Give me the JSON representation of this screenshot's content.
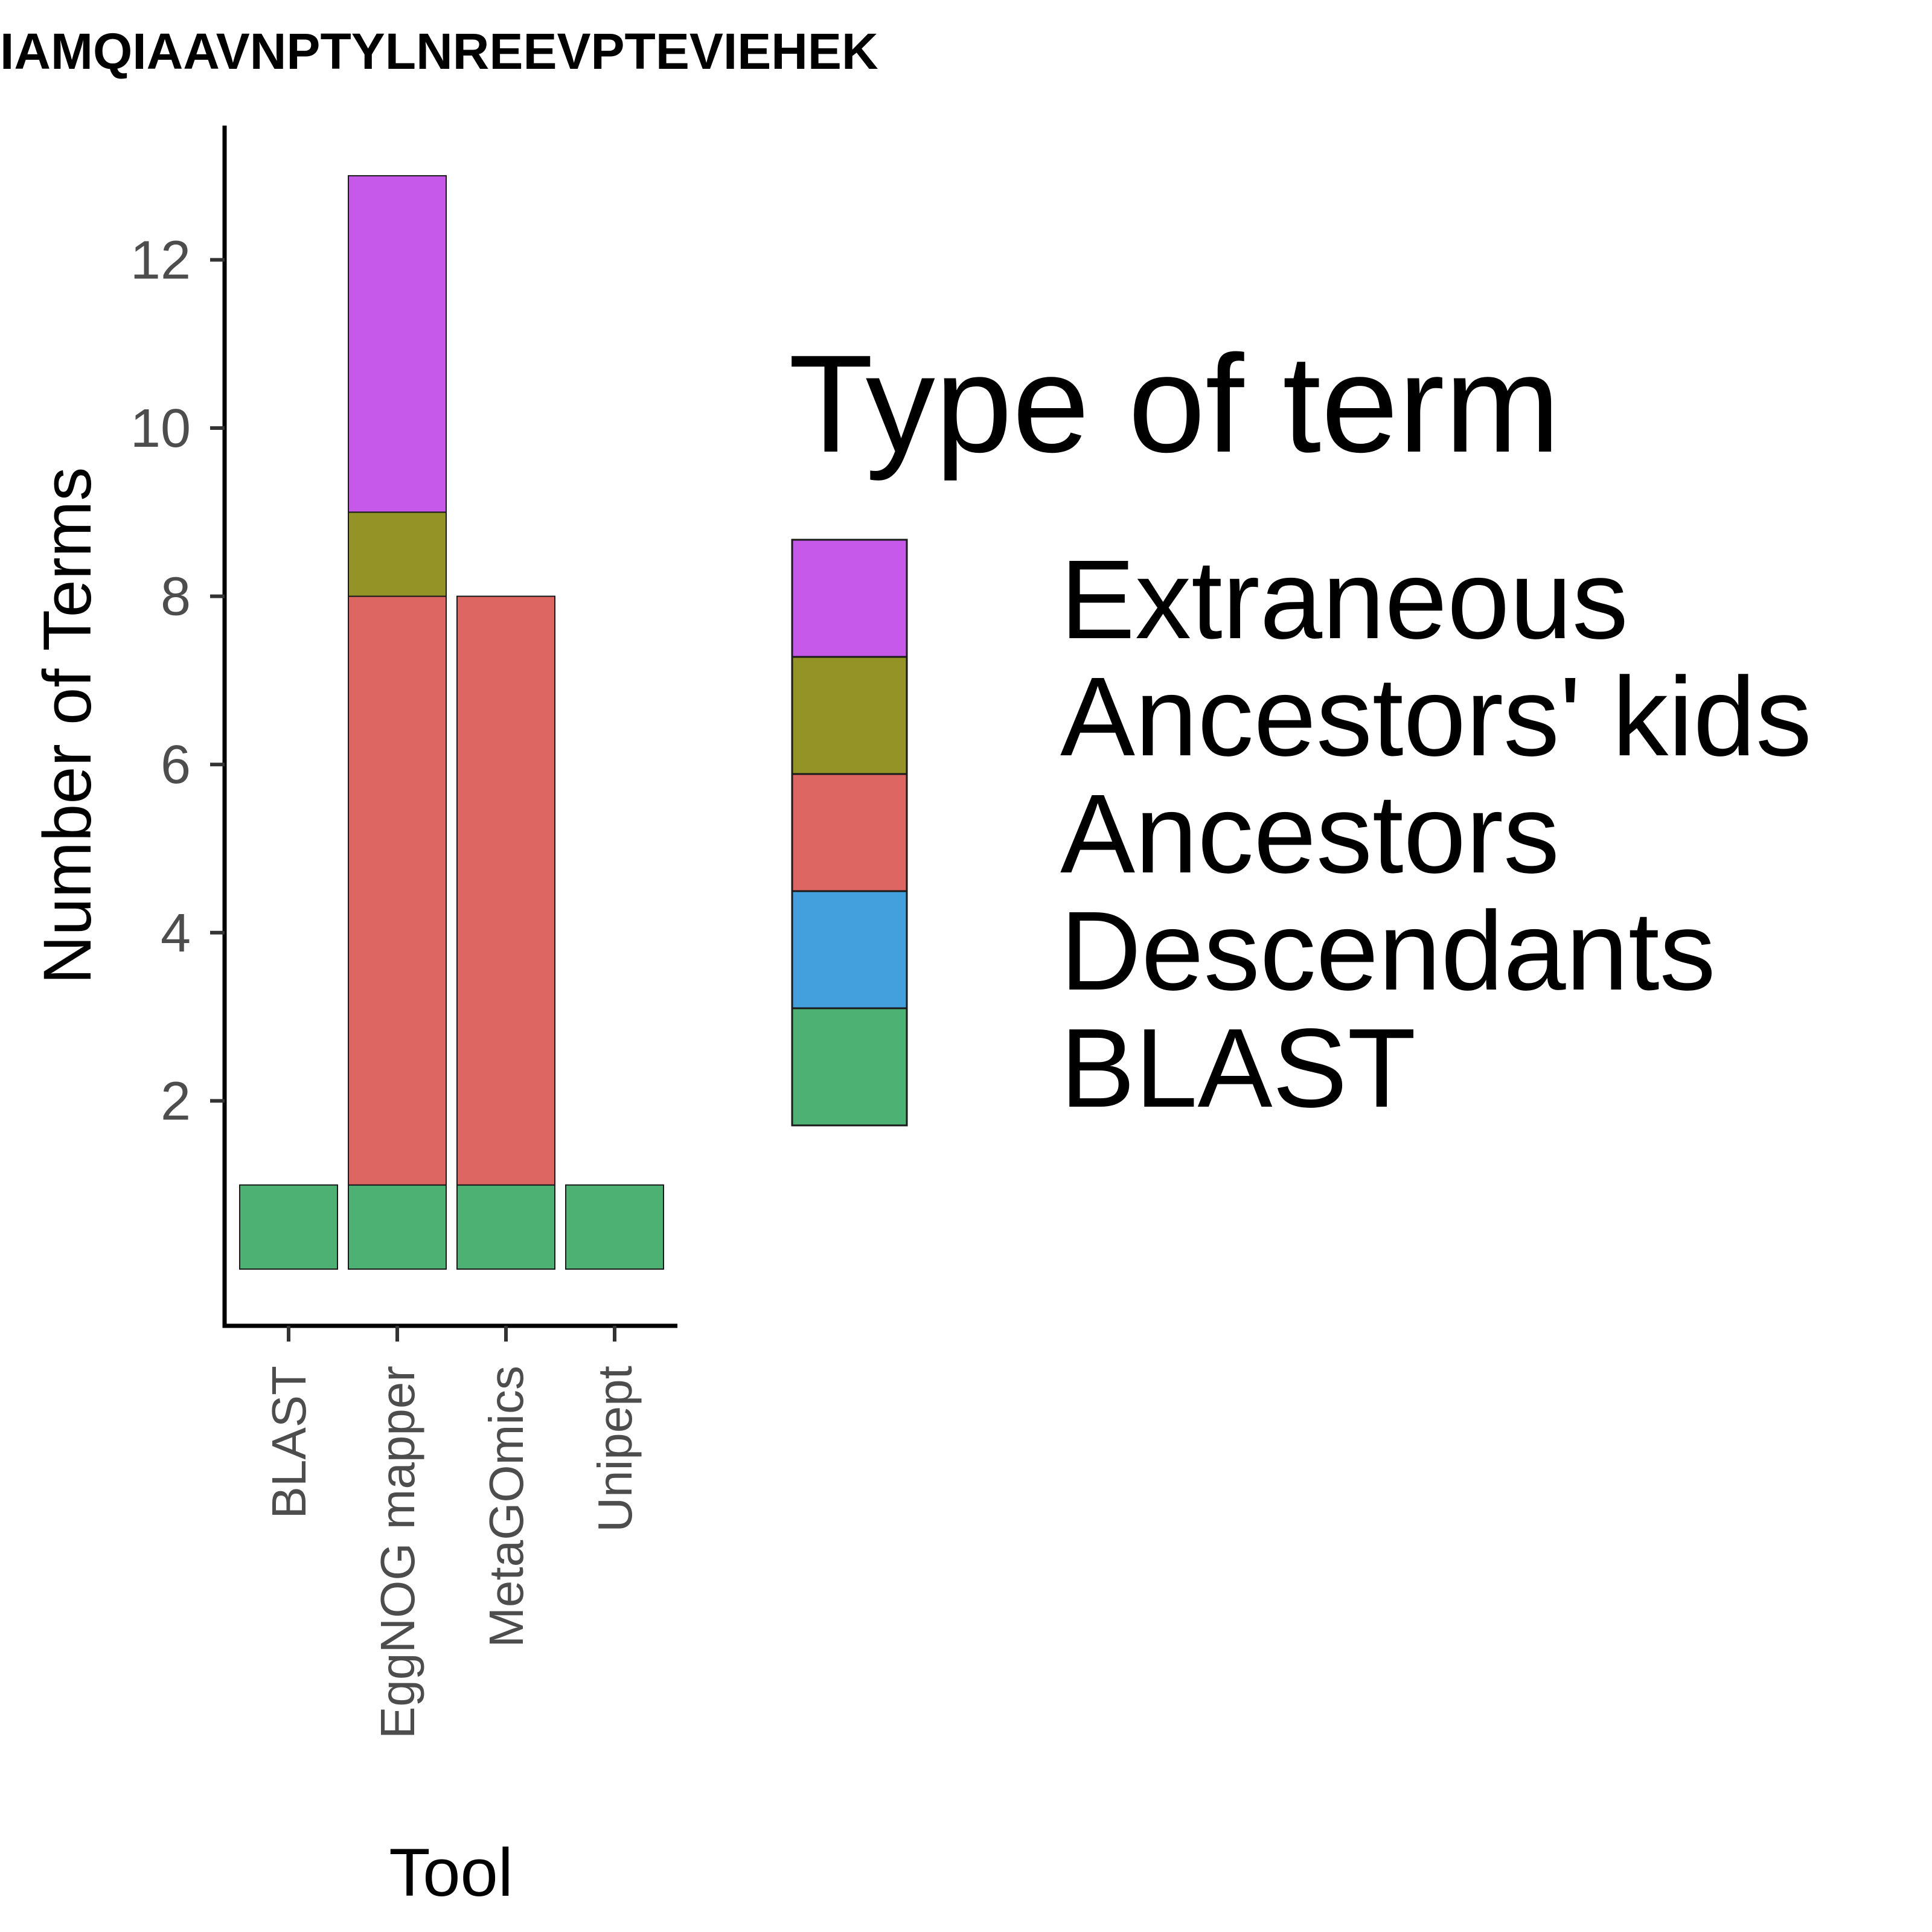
{
  "chart_data": {
    "type": "bar",
    "stacked": true,
    "title": "IAMQIAAVNPTYLNREEVPTEVIEHEK",
    "xlabel": "Tool",
    "ylabel": "Number of Terms",
    "categories": [
      "BLAST",
      "EggNOG mapper",
      "MetaGOmics",
      "Unipept"
    ],
    "series": [
      {
        "name": "BLAST",
        "color": "#4DB174",
        "values": [
          1,
          1,
          1,
          1
        ]
      },
      {
        "name": "Descendants",
        "color": "#43A0DD",
        "values": [
          0,
          0,
          0,
          0
        ]
      },
      {
        "name": "Ancestors",
        "color": "#DD6662",
        "values": [
          0,
          7,
          7,
          0
        ]
      },
      {
        "name": "Ancestors' kids",
        "color": "#949326",
        "values": [
          0,
          1,
          0,
          0
        ]
      },
      {
        "name": "Extraneous",
        "color": "#C659EA",
        "values": [
          0,
          4,
          0,
          0
        ]
      }
    ],
    "ylim": [
      0,
      13.85
    ],
    "yticks": [
      2,
      4,
      6,
      8,
      10,
      12
    ],
    "grid": false,
    "legend": {
      "title": "Type of term",
      "placement": "right",
      "order": [
        "Extraneous",
        "Ancestors' kids",
        "Ancestors",
        "Descendants",
        "BLAST"
      ]
    }
  }
}
